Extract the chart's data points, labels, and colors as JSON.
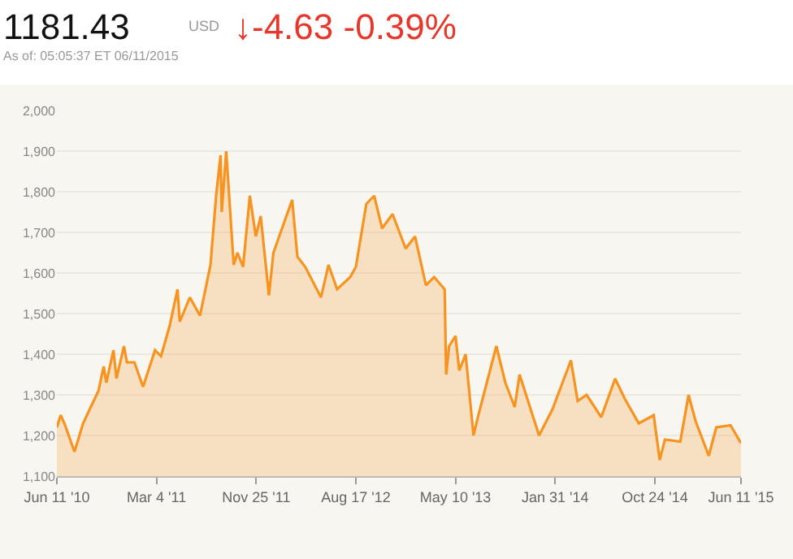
{
  "chart_data": {
    "type": "area",
    "title": "1181.43",
    "subtitle": "As of: 05:05:37 ET 06/11/2015",
    "annotations": [
      "USD",
      "↓-4.63 -0.39%"
    ],
    "x": [
      "2010-06-11",
      "2010-06-21",
      "2010-07-01",
      "2010-07-28",
      "2010-08-20",
      "2010-09-30",
      "2010-10-14",
      "2010-10-21",
      "2010-11-09",
      "2010-11-17",
      "2010-12-07",
      "2010-12-15",
      "2011-01-04",
      "2011-01-27",
      "2011-02-28",
      "2011-03-16",
      "2011-04-08",
      "2011-04-29",
      "2011-05-05",
      "2011-06-01",
      "2011-06-28",
      "2011-07-26",
      "2011-08-10",
      "2011-08-22",
      "2011-08-25",
      "2011-09-06",
      "2011-09-26",
      "2011-10-06",
      "2011-10-21",
      "2011-11-08",
      "2011-11-24",
      "2011-12-07",
      "2011-12-29",
      "2012-01-10",
      "2012-02-29",
      "2012-03-14",
      "2012-04-04",
      "2012-05-16",
      "2012-06-05",
      "2012-06-28",
      "2012-08-02",
      "2012-08-17",
      "2012-09-14",
      "2012-10-05",
      "2012-10-26",
      "2012-11-23",
      "2012-12-28",
      "2013-01-22",
      "2013-02-20",
      "2013-03-14",
      "2013-04-11",
      "2013-04-15",
      "2013-04-23",
      "2013-05-10",
      "2013-05-20",
      "2013-06-06",
      "2013-06-27",
      "2013-07-10",
      "2013-08-27",
      "2013-09-20",
      "2013-10-15",
      "2013-10-28",
      "2013-12-19",
      "2014-01-24",
      "2014-03-14",
      "2014-04-01",
      "2014-04-25",
      "2014-06-03",
      "2014-07-10",
      "2014-08-05",
      "2014-09-11",
      "2014-10-21",
      "2014-11-06",
      "2014-11-20",
      "2014-12-31",
      "2015-01-22",
      "2015-02-10",
      "2015-03-17",
      "2015-04-06",
      "2015-05-14",
      "2015-06-11"
    ],
    "series": [
      {
        "color": "#f7931e",
        "values": [
          1220,
          1250,
          1230,
          1160,
          1230,
          1310,
          1370,
          1330,
          1410,
          1340,
          1420,
          1380,
          1380,
          1320,
          1410,
          1395,
          1470,
          1560,
          1480,
          1540,
          1495,
          1620,
          1790,
          1890,
          1750,
          1900,
          1620,
          1650,
          1615,
          1790,
          1690,
          1740,
          1545,
          1650,
          1780,
          1640,
          1615,
          1540,
          1620,
          1560,
          1590,
          1615,
          1770,
          1790,
          1710,
          1745,
          1660,
          1690,
          1570,
          1590,
          1560,
          1350,
          1420,
          1445,
          1360,
          1400,
          1200,
          1250,
          1420,
          1330,
          1270,
          1350,
          1200,
          1265,
          1385,
          1285,
          1300,
          1245,
          1340,
          1290,
          1230,
          1250,
          1140,
          1190,
          1185,
          1300,
          1235,
          1150,
          1220,
          1225,
          1181
        ]
      }
    ],
    "ylim": [
      1100,
      2000
    ],
    "yticks": [
      {
        "value": 1100,
        "label": "1,100"
      },
      {
        "value": 1200,
        "label": "1,200"
      },
      {
        "value": 1300,
        "label": "1,300"
      },
      {
        "value": 1400,
        "label": "1,400"
      },
      {
        "value": 1500,
        "label": "1,500"
      },
      {
        "value": 1600,
        "label": "1,600"
      },
      {
        "value": 1700,
        "label": "1,700"
      },
      {
        "value": 1800,
        "label": "1,800"
      },
      {
        "value": 1900,
        "label": "1,900"
      },
      {
        "value": 2000,
        "label": "2,000"
      }
    ],
    "xlim": [
      "2010-06-11",
      "2015-06-11"
    ],
    "xticks": [
      {
        "value": "2010-06-11",
        "label": "Jun 11 '10"
      },
      {
        "value": "2011-03-04",
        "label": "Mar 4 '11"
      },
      {
        "value": "2011-11-25",
        "label": "Nov 25 '11"
      },
      {
        "value": "2012-08-17",
        "label": "Aug 17 '12"
      },
      {
        "value": "2013-05-10",
        "label": "May 10 '13"
      },
      {
        "value": "2014-01-31",
        "label": "Jan 31 '14"
      },
      {
        "value": "2014-10-24",
        "label": "Oct 24 '14"
      },
      {
        "value": "2015-06-11",
        "label": "Jun 11 '15"
      }
    ],
    "grid": "y",
    "legend": false,
    "marker": "none",
    "line_style": "solid"
  }
}
